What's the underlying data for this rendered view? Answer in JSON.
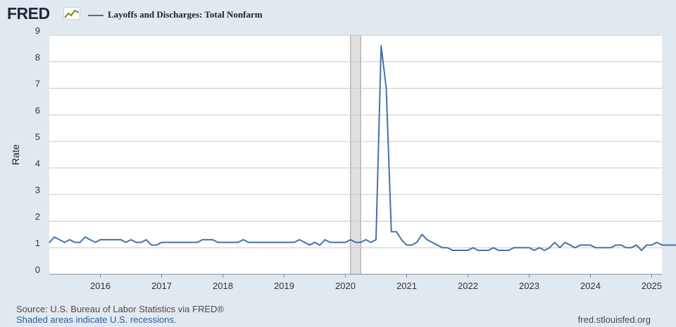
{
  "header": {
    "logo_text": "FRED",
    "logo_icon": "line-chart-icon",
    "legend_label": "Layoffs and Discharges: Total Nonfarm",
    "legend_color": "#4572a7"
  },
  "footer": {
    "source": "Source: U.S. Bureau of Labor Statistics via FRED®",
    "recession_note": "Shaded areas indicate U.S. recessions.",
    "site": "fred.stlouisfed.org"
  },
  "chart_data": {
    "type": "line",
    "ylabel": "Rate",
    "ylim": [
      0,
      9
    ],
    "yticks": [
      0,
      1,
      2,
      3,
      4,
      5,
      6,
      7,
      8,
      9
    ],
    "xlim": [
      "2015-03",
      "2025-03"
    ],
    "xticks": [
      "2016",
      "2017",
      "2018",
      "2019",
      "2020",
      "2021",
      "2022",
      "2023",
      "2024",
      "2025"
    ],
    "grid": true,
    "background_color": "#ffffff",
    "recession_color": "#e0e0e0",
    "recessions": [
      {
        "start": "2020-02",
        "end": "2020-04"
      }
    ],
    "series": [
      {
        "name": "Layoffs and Discharges: Total Nonfarm",
        "color": "#4572a7",
        "start": "2015-03",
        "values": [
          1.2,
          1.4,
          1.3,
          1.2,
          1.3,
          1.2,
          1.2,
          1.4,
          1.3,
          1.2,
          1.3,
          1.3,
          1.3,
          1.3,
          1.3,
          1.2,
          1.3,
          1.2,
          1.2,
          1.3,
          1.1,
          1.1,
          1.2,
          1.2,
          1.2,
          1.2,
          1.2,
          1.2,
          1.2,
          1.2,
          1.3,
          1.3,
          1.3,
          1.2,
          1.2,
          1.2,
          1.2,
          1.2,
          1.3,
          1.2,
          1.2,
          1.2,
          1.2,
          1.2,
          1.2,
          1.2,
          1.2,
          1.2,
          1.2,
          1.3,
          1.2,
          1.1,
          1.2,
          1.1,
          1.3,
          1.2,
          1.2,
          1.2,
          1.2,
          1.3,
          1.2,
          1.2,
          1.3,
          1.2,
          1.3,
          8.6,
          7.0,
          1.6,
          1.6,
          1.3,
          1.1,
          1.1,
          1.2,
          1.5,
          1.3,
          1.2,
          1.1,
          1.0,
          1.0,
          0.9,
          0.9,
          0.9,
          0.9,
          1.0,
          0.9,
          0.9,
          0.9,
          1.0,
          0.9,
          0.9,
          0.9,
          1.0,
          1.0,
          1.0,
          1.0,
          0.9,
          1.0,
          0.9,
          1.0,
          1.2,
          1.0,
          1.2,
          1.1,
          1.0,
          1.1,
          1.1,
          1.1,
          1.0,
          1.0,
          1.0,
          1.0,
          1.1,
          1.1,
          1.0,
          1.0,
          1.1,
          0.9,
          1.1,
          1.1,
          1.2,
          1.1,
          1.1,
          1.1,
          1.1,
          1.1
        ]
      }
    ]
  }
}
